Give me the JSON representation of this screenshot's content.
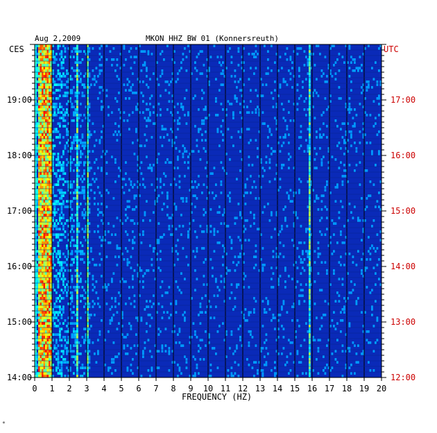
{
  "header": {
    "date": "Aug 2,2009",
    "station": "MKON HHZ BW 01 (Konnersreuth)",
    "left_zone": "CES",
    "right_zone": "UTC"
  },
  "footer_mark": "*",
  "colors": {
    "left_axis": "#000000",
    "right_axis": "#cc0000",
    "background_spectrum": "#0a2ab8"
  },
  "chart_data": {
    "type": "heatmap",
    "title": "",
    "xlabel": "FREQUENCY (HZ)",
    "ylabel": "",
    "xlim": [
      0,
      20
    ],
    "x_ticks": [
      "0",
      "1",
      "2",
      "3",
      "4",
      "5",
      "6",
      "7",
      "8",
      "9",
      "10",
      "11",
      "12",
      "13",
      "14",
      "15",
      "16",
      "17",
      "18",
      "19",
      "20"
    ],
    "y_left_ticks": [
      "14:00",
      "15:00",
      "16:00",
      "17:00",
      "18:00",
      "19:00"
    ],
    "y_right_ticks": [
      "12:00",
      "13:00",
      "14:00",
      "15:00",
      "16:00",
      "17:00"
    ],
    "grid": true,
    "colormap": "jet",
    "features": [
      {
        "freq_hz": [
          0.2,
          1.0
        ],
        "level": "high"
      },
      {
        "freq_hz": [
          2.4,
          2.5
        ],
        "level": "medium"
      },
      {
        "freq_hz": [
          3.0,
          3.1
        ],
        "level": "medium"
      },
      {
        "freq_hz": [
          15.8,
          15.9
        ],
        "level": "medium"
      }
    ]
  }
}
